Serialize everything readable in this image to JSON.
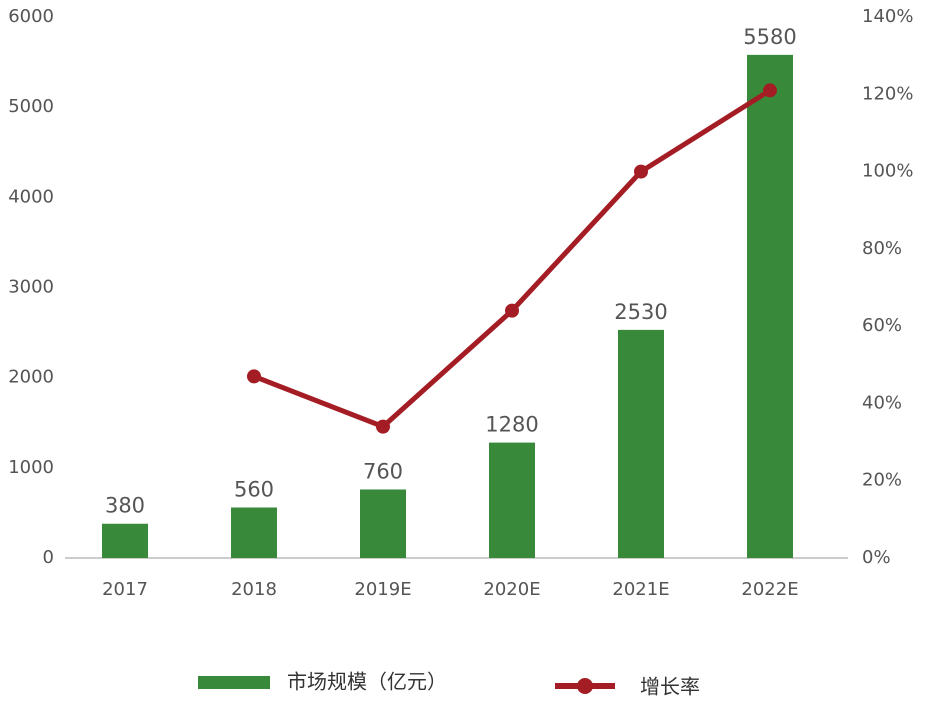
{
  "chart_data": {
    "type": "bar",
    "categories": [
      "2017",
      "2018",
      "2019E",
      "2020E",
      "2021E",
      "2022E"
    ],
    "series": [
      {
        "name": "市场规模（亿元）",
        "type": "bar",
        "color": "#388a3a",
        "values": [
          380,
          560,
          760,
          1280,
          2530,
          5580
        ]
      },
      {
        "name": "增长率",
        "type": "line",
        "axis": "y2",
        "color": "#a51d24",
        "values": [
          null,
          47,
          34,
          64,
          100,
          121
        ]
      }
    ],
    "ylim": [
      0,
      6000
    ],
    "yticks": [
      0,
      1000,
      2000,
      3000,
      4000,
      5000,
      6000
    ],
    "y2lim": [
      0,
      140
    ],
    "y2ticks": [
      {
        "value": 0,
        "label": "0%"
      },
      {
        "value": 20,
        "label": "20%"
      },
      {
        "value": 40,
        "label": "40%"
      },
      {
        "value": 60,
        "label": "60%"
      },
      {
        "value": 80,
        "label": "80%"
      },
      {
        "value": 100,
        "label": "100%"
      },
      {
        "value": 120,
        "label": "120%"
      },
      {
        "value": 140,
        "label": "140%"
      }
    ],
    "grid": false,
    "legend": "bottom"
  }
}
